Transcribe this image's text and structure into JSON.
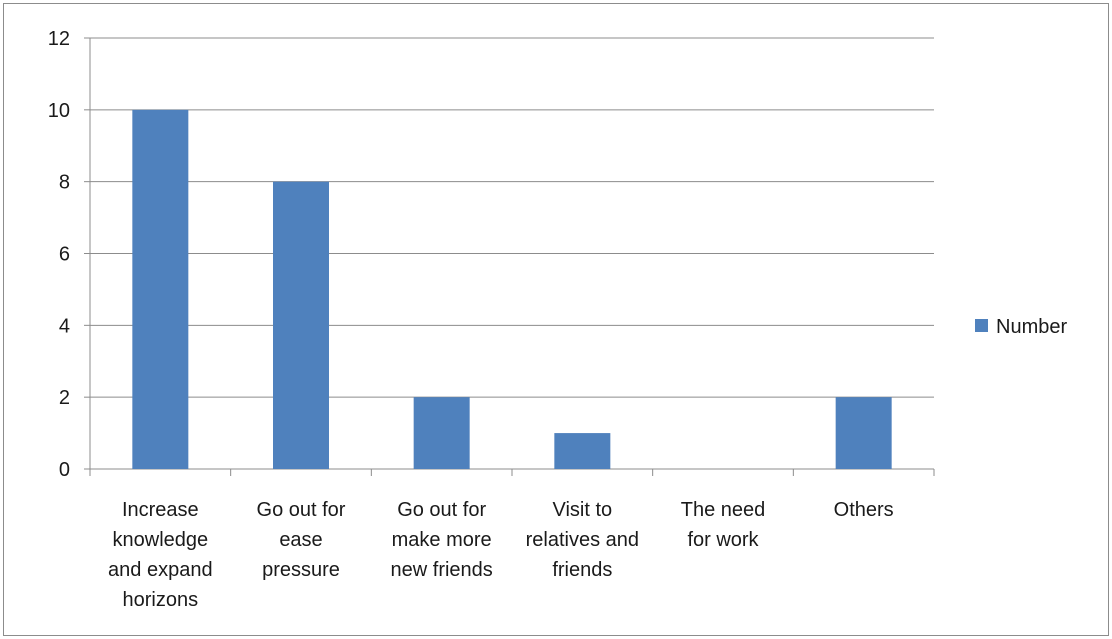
{
  "chart_data": {
    "type": "bar",
    "categories": [
      "Increase knowledge and expand horizons",
      "Go out for ease pressure",
      "Go out for make more new friends",
      "Visit to relatives and friends",
      "The need for work",
      "Others"
    ],
    "category_lines": [
      [
        "Increase",
        "knowledge",
        "and expand",
        "horizons"
      ],
      [
        "Go out for",
        "ease",
        "pressure"
      ],
      [
        "Go out for",
        "make more",
        "new friends"
      ],
      [
        "Visit to",
        "relatives and",
        "friends"
      ],
      [
        "The need",
        "for work"
      ],
      [
        "Others"
      ]
    ],
    "series": [
      {
        "name": "Number",
        "values": [
          10,
          8,
          2,
          1,
          0,
          2
        ],
        "color": "#4f81bd"
      }
    ],
    "ylim": [
      0,
      12
    ],
    "y_ticks": [
      0,
      2,
      4,
      6,
      8,
      10,
      12
    ],
    "grid": true,
    "legend_position": "right"
  }
}
